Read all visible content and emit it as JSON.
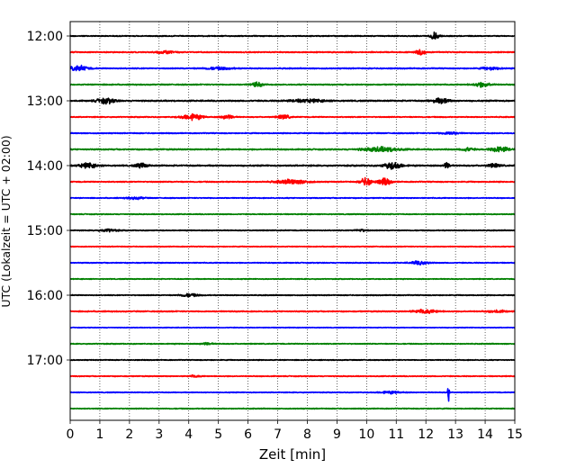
{
  "chart_data": {
    "type": "line",
    "title": "",
    "xlabel": "Zeit  [min]",
    "ylabel": "UTC (Lokalzeit = UTC + 02:00)",
    "xlim": [
      0,
      15
    ],
    "x_ticks": [
      "0",
      "1",
      "2",
      "3",
      "4",
      "5",
      "6",
      "7",
      "8",
      "9",
      "10",
      "11",
      "12",
      "13",
      "14",
      "15"
    ],
    "y_ticks": [
      "12:00",
      "13:00",
      "14:00",
      "15:00",
      "16:00",
      "17:00"
    ],
    "grid": "vertical dotted",
    "colors": [
      "#000000",
      "#ff0000",
      "#0000ff",
      "#008000"
    ],
    "series": [
      {
        "start": "12:00",
        "color": "#000000",
        "base_amp": 0.22,
        "events": [
          {
            "t": 12.3,
            "amp": 1.6,
            "w": 0.15
          }
        ]
      },
      {
        "start": "12:15",
        "color": "#ff0000",
        "base_amp": 0.25,
        "events": [
          {
            "t": 11.8,
            "amp": 1.6,
            "w": 0.15
          },
          {
            "t": 3.2,
            "amp": 0.6,
            "w": 0.3
          }
        ]
      },
      {
        "start": "12:30",
        "color": "#0000ff",
        "base_amp": 0.25,
        "events": [
          {
            "t": 0.3,
            "amp": 1.2,
            "w": 0.3
          },
          {
            "t": 5.0,
            "amp": 0.5,
            "w": 0.5
          },
          {
            "t": 14.2,
            "amp": 0.6,
            "w": 0.3
          }
        ]
      },
      {
        "start": "12:45",
        "color": "#008000",
        "base_amp": 0.25,
        "events": [
          {
            "t": 6.3,
            "amp": 1.0,
            "w": 0.2
          },
          {
            "t": 13.9,
            "amp": 1.0,
            "w": 0.3
          }
        ]
      },
      {
        "start": "13:00",
        "color": "#000000",
        "base_amp": 0.3,
        "events": [
          {
            "t": 1.2,
            "amp": 1.2,
            "w": 0.3
          },
          {
            "t": 12.5,
            "amp": 1.2,
            "w": 0.3
          },
          {
            "t": 8.0,
            "amp": 0.6,
            "w": 0.6
          }
        ]
      },
      {
        "start": "13:15",
        "color": "#ff0000",
        "base_amp": 0.22,
        "events": [
          {
            "t": 4.1,
            "amp": 1.4,
            "w": 0.35
          },
          {
            "t": 5.3,
            "amp": 1.0,
            "w": 0.2
          },
          {
            "t": 7.2,
            "amp": 1.0,
            "w": 0.2
          }
        ]
      },
      {
        "start": "13:30",
        "color": "#0000ff",
        "base_amp": 0.22,
        "events": [
          {
            "t": 12.8,
            "amp": 0.6,
            "w": 0.3
          }
        ]
      },
      {
        "start": "13:45",
        "color": "#008000",
        "base_amp": 0.28,
        "events": [
          {
            "t": 10.5,
            "amp": 1.0,
            "w": 0.6
          },
          {
            "t": 14.5,
            "amp": 1.2,
            "w": 0.3
          },
          {
            "t": 13.4,
            "amp": 0.8,
            "w": 0.2
          }
        ]
      },
      {
        "start": "14:00",
        "color": "#000000",
        "base_amp": 0.3,
        "events": [
          {
            "t": 0.6,
            "amp": 1.0,
            "w": 0.3
          },
          {
            "t": 2.4,
            "amp": 1.0,
            "w": 0.2
          },
          {
            "t": 10.9,
            "amp": 1.6,
            "w": 0.3
          },
          {
            "t": 12.7,
            "amp": 1.4,
            "w": 0.1
          },
          {
            "t": 14.3,
            "amp": 0.8,
            "w": 0.2
          }
        ]
      },
      {
        "start": "14:15",
        "color": "#ff0000",
        "base_amp": 0.25,
        "events": [
          {
            "t": 7.5,
            "amp": 1.0,
            "w": 0.5
          },
          {
            "t": 10.0,
            "amp": 1.8,
            "w": 0.2
          },
          {
            "t": 10.6,
            "amp": 1.6,
            "w": 0.2
          }
        ]
      },
      {
        "start": "14:30",
        "color": "#0000ff",
        "base_amp": 0.2,
        "events": [
          {
            "t": 2.2,
            "amp": 0.5,
            "w": 0.3
          }
        ]
      },
      {
        "start": "14:45",
        "color": "#008000",
        "base_amp": 0.2,
        "events": []
      },
      {
        "start": "15:00",
        "color": "#000000",
        "base_amp": 0.2,
        "events": [
          {
            "t": 1.3,
            "amp": 0.6,
            "w": 0.3
          },
          {
            "t": 9.8,
            "amp": 0.5,
            "w": 0.2
          }
        ]
      },
      {
        "start": "15:15",
        "color": "#ff0000",
        "base_amp": 0.18,
        "events": []
      },
      {
        "start": "15:30",
        "color": "#0000ff",
        "base_amp": 0.2,
        "events": [
          {
            "t": 11.8,
            "amp": 0.8,
            "w": 0.3
          }
        ]
      },
      {
        "start": "15:45",
        "color": "#008000",
        "base_amp": 0.18,
        "events": []
      },
      {
        "start": "16:00",
        "color": "#000000",
        "base_amp": 0.2,
        "events": [
          {
            "t": 4.0,
            "amp": 0.7,
            "w": 0.3
          }
        ]
      },
      {
        "start": "16:15",
        "color": "#ff0000",
        "base_amp": 0.25,
        "events": [
          {
            "t": 12.0,
            "amp": 0.8,
            "w": 0.4
          },
          {
            "t": 14.4,
            "amp": 0.5,
            "w": 0.3
          }
        ]
      },
      {
        "start": "16:30",
        "color": "#0000ff",
        "base_amp": 0.15,
        "events": []
      },
      {
        "start": "16:45",
        "color": "#008000",
        "base_amp": 0.2,
        "events": [
          {
            "t": 4.6,
            "amp": 0.5,
            "w": 0.2
          }
        ]
      },
      {
        "start": "17:00",
        "color": "#000000",
        "base_amp": 0.18,
        "events": []
      },
      {
        "start": "17:15",
        "color": "#ff0000",
        "base_amp": 0.2,
        "events": [
          {
            "t": 4.2,
            "amp": 0.4,
            "w": 0.2
          }
        ]
      },
      {
        "start": "17:30",
        "color": "#0000ff",
        "base_amp": 0.18,
        "events": [
          {
            "t": 10.8,
            "amp": 0.5,
            "w": 0.4
          },
          {
            "t": 12.76,
            "amp": 5.0,
            "w": 0.03
          }
        ]
      },
      {
        "start": "17:45",
        "color": "#008000",
        "base_amp": 0.2,
        "events": []
      }
    ]
  }
}
